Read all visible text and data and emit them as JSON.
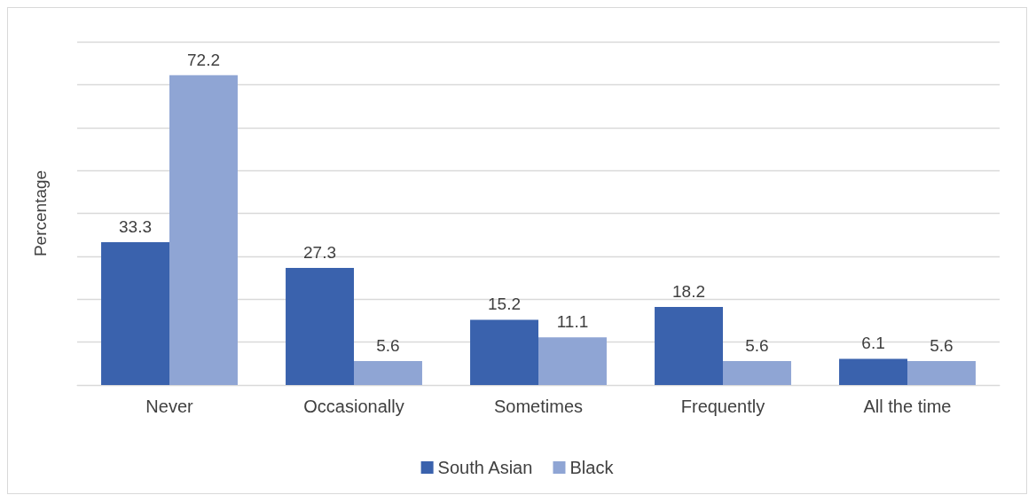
{
  "chart_data": {
    "type": "bar",
    "ylabel": "Percentage",
    "categories": [
      "Never",
      "Occasionally",
      "Sometimes",
      "Frequently",
      "All the time"
    ],
    "series": [
      {
        "name": "South Asian",
        "color": "#3a62ad",
        "values": [
          33.3,
          27.3,
          15.2,
          18.2,
          6.1
        ]
      },
      {
        "name": "Black",
        "color": "#8fa5d4",
        "values": [
          72.2,
          5.6,
          11.1,
          5.6,
          5.6
        ]
      }
    ],
    "ylim": [
      0,
      80
    ],
    "yticks": [
      {
        "value": 0,
        "label": null
      },
      {
        "value": 10,
        "label": null
      },
      {
        "value": 20,
        "label": null
      },
      {
        "value": 30,
        "label": null
      },
      {
        "value": 40,
        "label": null
      },
      {
        "value": 50,
        "label": null
      },
      {
        "value": 60,
        "label": null
      },
      {
        "value": 70,
        "label": null
      },
      {
        "value": 80,
        "label": null
      }
    ],
    "grid": "y",
    "legend": "bottom",
    "data_labels": true
  }
}
